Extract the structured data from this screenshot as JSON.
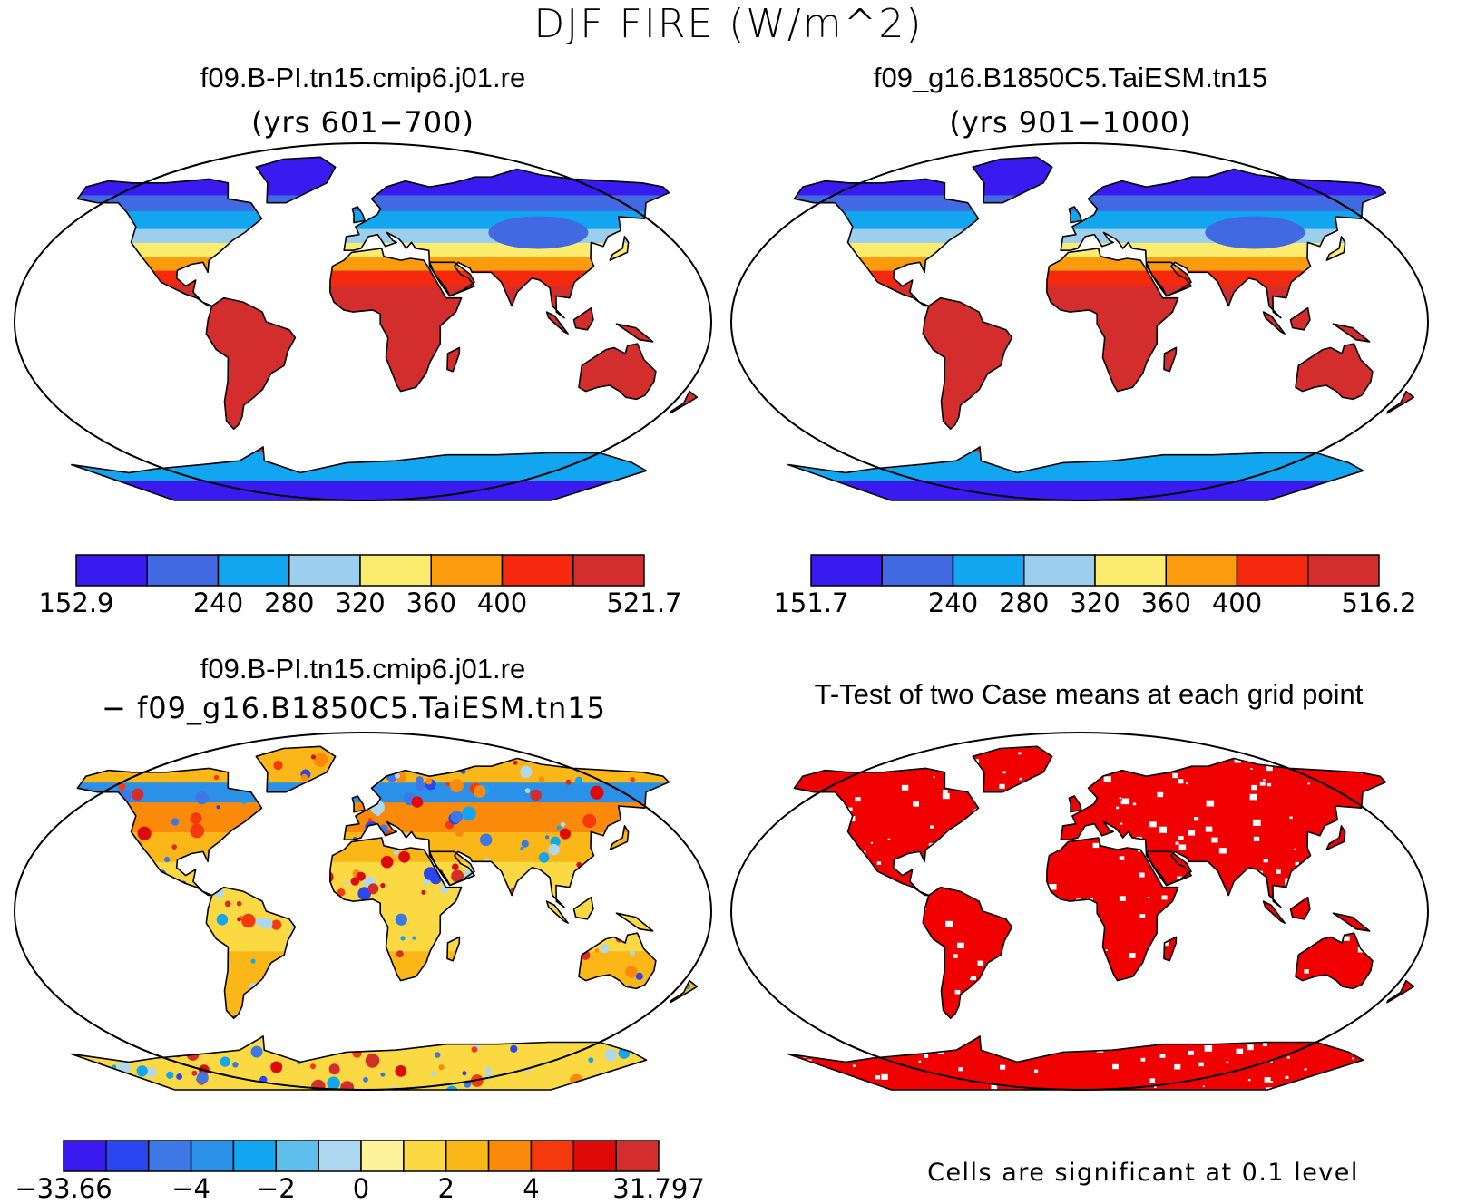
{
  "figure": {
    "title": "DJF FIRE (W/m^2)"
  },
  "panels": [
    {
      "id": "case1",
      "title": "f09.B-PI.tn15.cmip6.j01.re",
      "subtitle": "(yrs 601−700)",
      "colorbar": {
        "colors": [
          "#3b1af0",
          "#4169e1",
          "#13a6f0",
          "#9ccfee",
          "#fbec6f",
          "#fb9c0e",
          "#f5290d",
          "#d42d2d"
        ],
        "labels": [
          {
            "text": "152.9",
            "boundary": 0
          },
          {
            "text": "240",
            "boundary": 2
          },
          {
            "text": "280",
            "boundary": 3
          },
          {
            "text": "320",
            "boundary": 4
          },
          {
            "text": "360",
            "boundary": 5
          },
          {
            "text": "400",
            "boundary": 6
          },
          {
            "text": "521.7",
            "boundary": 8
          }
        ]
      }
    },
    {
      "id": "case2",
      "title": "f09_g16.B1850C5.TaiESM.tn15",
      "subtitle": "(yrs 901−1000)",
      "colorbar": {
        "colors": [
          "#3b1af0",
          "#4169e1",
          "#13a6f0",
          "#9ccfee",
          "#fbec6f",
          "#fb9c0e",
          "#f5290d",
          "#d42d2d"
        ],
        "labels": [
          {
            "text": "151.7",
            "boundary": 0
          },
          {
            "text": "240",
            "boundary": 2
          },
          {
            "text": "280",
            "boundary": 3
          },
          {
            "text": "320",
            "boundary": 4
          },
          {
            "text": "360",
            "boundary": 5
          },
          {
            "text": "400",
            "boundary": 6
          },
          {
            "text": "516.2",
            "boundary": 8
          }
        ]
      }
    },
    {
      "id": "difference",
      "title": "f09.B-PI.tn15.cmip6.j01.re",
      "subtitle": "− f09_g16.B1850C5.TaiESM.tn15",
      "colorbar": {
        "colors": [
          "#3b1af0",
          "#2a46f0",
          "#3d78e6",
          "#2b91e8",
          "#13a6f0",
          "#5ebfee",
          "#aed8f2",
          "#fdf39c",
          "#fbd943",
          "#fbb718",
          "#fb8a0b",
          "#f5390d",
          "#de0a0a",
          "#d42d2d"
        ],
        "labels": [
          {
            "text": "−33.66",
            "boundary": 0
          },
          {
            "text": "−4",
            "boundary": 3
          },
          {
            "text": "−2",
            "boundary": 5
          },
          {
            "text": "0",
            "boundary": 7
          },
          {
            "text": "2",
            "boundary": 9
          },
          {
            "text": "4",
            "boundary": 11
          },
          {
            "text": "31.797",
            "boundary": 14
          }
        ]
      }
    },
    {
      "id": "ttest",
      "title": "T-Test of two Case means at each grid point",
      "footnote": "Cells are significant at 0.1 level",
      "significant_color": "#f00000"
    }
  ]
}
